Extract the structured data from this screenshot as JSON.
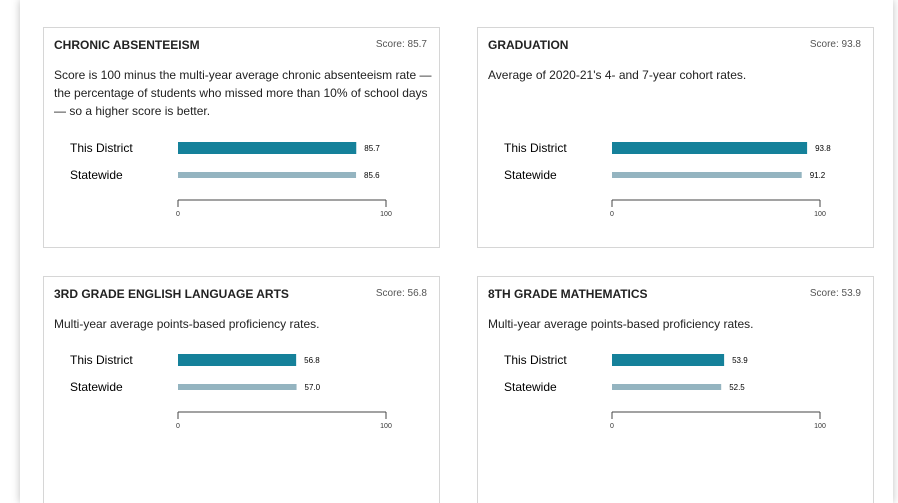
{
  "chart_data": [
    {
      "type": "bar",
      "orientation": "horizontal",
      "title": "CHRONIC ABSENTEEISM",
      "subtitle": "Score: 85.7",
      "description": "Score is 100 minus the multi-year average chronic absenteeism rate — the percentage of students who missed more than 10% of school days — so a higher score is better.",
      "categories": [
        "This District",
        "Statewide"
      ],
      "values": [
        85.7,
        85.6
      ],
      "value_labels": [
        "85.7",
        "85.6"
      ],
      "colors": [
        "#15819a",
        "#94b4c0"
      ],
      "xlim": [
        0,
        100
      ],
      "xticks": [
        0,
        100
      ]
    },
    {
      "type": "bar",
      "orientation": "horizontal",
      "title": "GRADUATION",
      "subtitle": "Score: 93.8",
      "description": "Average of 2020-21's 4- and 7-year cohort rates.",
      "categories": [
        "This District",
        "Statewide"
      ],
      "values": [
        93.8,
        91.2
      ],
      "value_labels": [
        "93.8",
        "91.2"
      ],
      "colors": [
        "#15819a",
        "#94b4c0"
      ],
      "xlim": [
        0,
        100
      ],
      "xticks": [
        0,
        100
      ]
    },
    {
      "type": "bar",
      "orientation": "horizontal",
      "title": "3RD GRADE ENGLISH LANGUAGE ARTS",
      "subtitle": "Score: 56.8",
      "description": "Multi-year average points-based proficiency rates.",
      "categories": [
        "This District",
        "Statewide"
      ],
      "values": [
        56.8,
        57.0
      ],
      "value_labels": [
        "56.8",
        "57.0"
      ],
      "colors": [
        "#15819a",
        "#94b4c0"
      ],
      "xlim": [
        0,
        100
      ],
      "xticks": [
        0,
        100
      ]
    },
    {
      "type": "bar",
      "orientation": "horizontal",
      "title": "8TH GRADE MATHEMATICS",
      "subtitle": "Score: 53.9",
      "description": "Multi-year average points-based proficiency rates.",
      "categories": [
        "This District",
        "Statewide"
      ],
      "values": [
        53.9,
        52.5
      ],
      "value_labels": [
        "53.9",
        "52.5"
      ],
      "colors": [
        "#15819a",
        "#94b4c0"
      ],
      "xlim": [
        0,
        100
      ],
      "xticks": [
        0,
        100
      ]
    }
  ]
}
